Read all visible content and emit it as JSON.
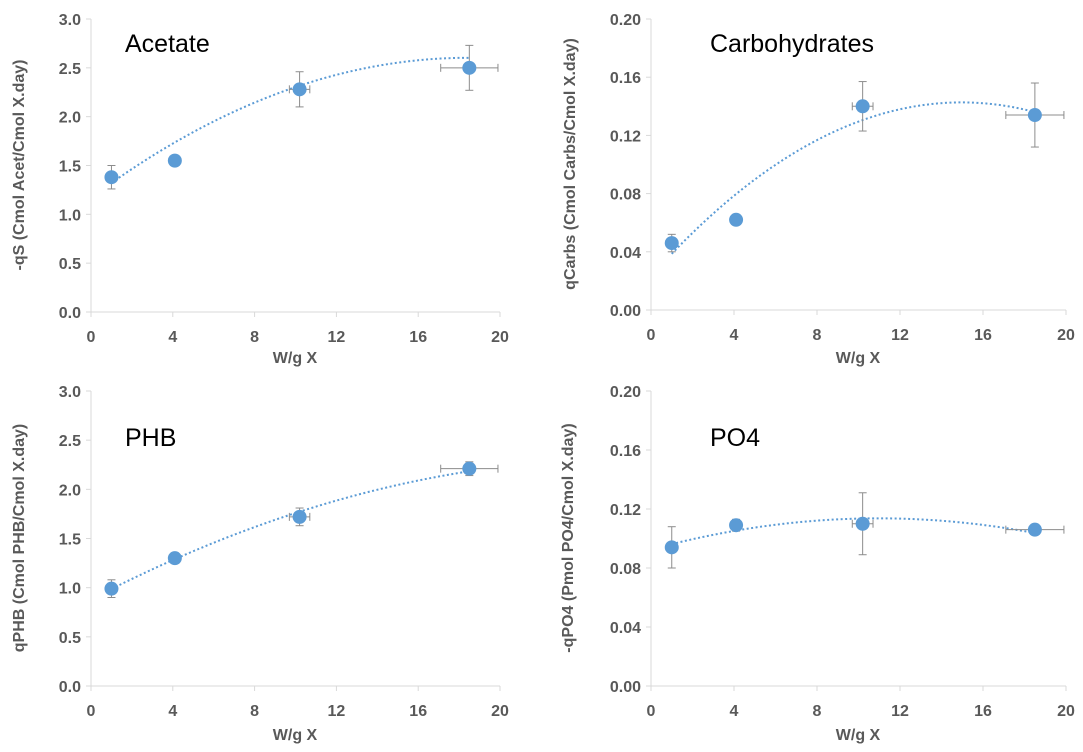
{
  "chart_data": [
    {
      "type": "scatter",
      "title": "Acetate",
      "xlabel": "W/g X",
      "ylabel": "-qS (Cmol Acet/Cmol X.day)",
      "xlim": [
        0,
        20
      ],
      "ylim": [
        0,
        3.0
      ],
      "x_ticks": [
        "0",
        "4",
        "8",
        "12",
        "16",
        "20"
      ],
      "y_ticks": [
        "0.0",
        "0.5",
        "1.0",
        "1.5",
        "2.0",
        "2.5",
        "3.0"
      ],
      "grid": false,
      "marker_color": "#5B9BD5",
      "trendline_color": "#5B9BD5",
      "series": [
        {
          "x": [
            1.0,
            4.1,
            10.2,
            18.5
          ],
          "y": [
            1.38,
            1.55,
            2.28,
            2.5
          ],
          "y_error": [
            0.12,
            0.0,
            0.18,
            0.23
          ],
          "x_error": [
            0.0,
            0.0,
            0.5,
            1.4
          ]
        }
      ],
      "trendline": {
        "type": "polynomial-2",
        "coefficients": [
          1.17,
          0.1555,
          -0.00422
        ]
      }
    },
    {
      "type": "scatter",
      "title": "Carbohydrates",
      "xlabel": "W/g X",
      "ylabel": "qCarbs (Cmol Carbs/Cmol X.day)",
      "xlim": [
        0,
        20
      ],
      "ylim": [
        0,
        0.2
      ],
      "x_ticks": [
        "0",
        "4",
        "8",
        "12",
        "16",
        "20"
      ],
      "y_ticks": [
        "0.00",
        "0.04",
        "0.08",
        "0.12",
        "0.16",
        "0.20"
      ],
      "grid": false,
      "marker_color": "#5B9BD5",
      "trendline_color": "#5B9BD5",
      "series": [
        {
          "x": [
            1.0,
            4.1,
            10.2,
            18.5
          ],
          "y": [
            0.046,
            0.062,
            0.14,
            0.134
          ],
          "y_error": [
            0.006,
            0.0,
            0.017,
            0.022
          ],
          "x_error": [
            0.0,
            0.0,
            0.5,
            1.4
          ]
        }
      ],
      "trendline": {
        "type": "polynomial-2",
        "coefficients": [
          0.0232,
          0.01596,
          -0.000533
        ]
      }
    },
    {
      "type": "scatter",
      "title": "PHB",
      "xlabel": "W/g X",
      "ylabel": "qPHB (Cmol PHB/Cmol X.day)",
      "xlim": [
        0,
        20
      ],
      "ylim": [
        0,
        3.0
      ],
      "x_ticks": [
        "0",
        "4",
        "8",
        "12",
        "16",
        "20"
      ],
      "y_ticks": [
        "0.0",
        "0.5",
        "1.0",
        "1.5",
        "2.0",
        "2.5",
        "3.0"
      ],
      "grid": false,
      "marker_color": "#5B9BD5",
      "trendline_color": "#5B9BD5",
      "series": [
        {
          "x": [
            1.0,
            4.1,
            10.2,
            18.5
          ],
          "y": [
            0.99,
            1.3,
            1.72,
            2.21
          ],
          "y_error": [
            0.09,
            0.0,
            0.09,
            0.07
          ],
          "x_error": [
            0.0,
            0.0,
            0.5,
            1.4
          ]
        }
      ],
      "trendline": {
        "type": "polynomial-2",
        "coefficients": [
          0.88,
          0.1084,
          -0.00205
        ]
      }
    },
    {
      "type": "scatter",
      "title": "PO4",
      "xlabel": "W/g X",
      "ylabel": "-qPO4 (Pmol PO4/Cmol X.day)",
      "xlim": [
        0,
        20
      ],
      "ylim": [
        0,
        0.2
      ],
      "x_ticks": [
        "0",
        "4",
        "8",
        "12",
        "16",
        "20"
      ],
      "y_ticks": [
        "0.00",
        "0.04",
        "0.08",
        "0.12",
        "0.16",
        "0.20"
      ],
      "grid": false,
      "marker_color": "#5B9BD5",
      "trendline_color": "#5B9BD5",
      "series": [
        {
          "x": [
            1.0,
            4.1,
            10.2,
            18.5
          ],
          "y": [
            0.094,
            0.109,
            0.11,
            0.106
          ],
          "y_error": [
            0.014,
            0.004,
            0.021,
            0.0
          ],
          "x_error": [
            0.0,
            0.0,
            0.5,
            1.4
          ]
        }
      ],
      "trendline": {
        "type": "polynomial-2",
        "coefficients": [
          0.0925,
          0.00386,
          -0.000176
        ]
      }
    }
  ]
}
